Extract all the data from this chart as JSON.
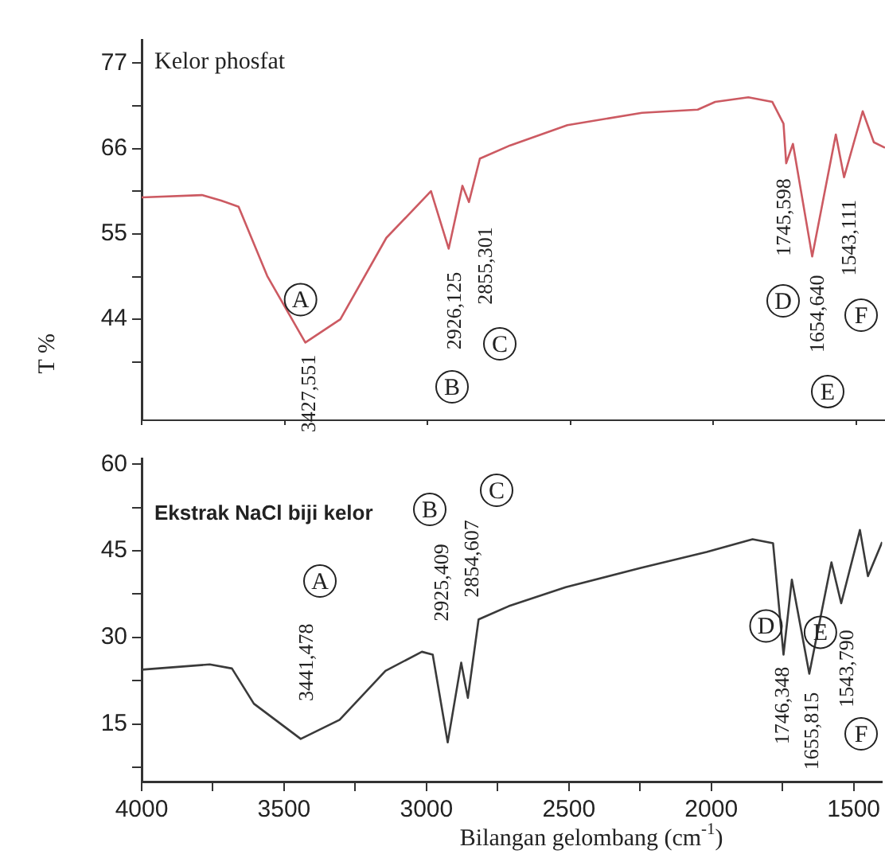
{
  "chart_data": [
    {
      "type": "line",
      "title": "Kelor phosfat",
      "ylabel": "T %",
      "tick_labels": "y",
      "grid": false,
      "legend": false,
      "marker": "none",
      "xlim": [
        4000,
        1400
      ],
      "ylim": [
        31,
        80
      ],
      "xticks": [
        {
          "value": 4000,
          "label": null
        },
        {
          "value": 3500,
          "label": null
        },
        {
          "value": 3000,
          "label": null
        },
        {
          "value": 2500,
          "label": null
        },
        {
          "value": 2000,
          "label": null
        },
        {
          "value": 1500,
          "label": null
        }
      ],
      "yticks": [
        {
          "value": 38.5,
          "label": null
        },
        44,
        {
          "value": 49.5,
          "label": null
        },
        55,
        {
          "value": 60.5,
          "label": null
        },
        66,
        {
          "value": 71.5,
          "label": null
        },
        77
      ],
      "series": [
        {
          "color": "#cc5a62",
          "x": [
            4000,
            3789,
            3722,
            3661,
            3561,
            3427.551,
            3305,
            3144,
            2988,
            2926.125,
            2878,
            2855.301,
            2817,
            2711,
            2511,
            2250,
            2055,
            1994,
            1878,
            1794,
            1755,
            1745.598,
            1722,
            1654.64,
            1572,
            1543.111,
            1478,
            1439,
            1400
          ],
          "values": [
            59.7,
            60.0,
            59.3,
            58.5,
            49.6,
            41,
            44.0,
            54.5,
            60.5,
            53.1,
            61.2,
            59.1,
            64.7,
            66.4,
            69.0,
            70.6,
            71.0,
            72.0,
            72.6,
            72.0,
            69.2,
            64.1,
            66.6,
            52.1,
            67.8,
            62.3,
            70.8,
            66.8,
            66.1
          ]
        }
      ],
      "annotations": [
        {
          "text": "3427,551",
          "x": 3427.551,
          "y": 41
        },
        {
          "text": "2926,125",
          "x": 2926.125,
          "y": 53.1
        },
        {
          "text": "2855,301",
          "x": 2855.301,
          "y": 59.1
        },
        {
          "text": "1745,598",
          "x": 1745.598,
          "y": 64.1
        },
        {
          "text": "1654,640",
          "x": 1654.64,
          "y": 52.1
        },
        {
          "text": "1543,111",
          "x": 1543.111,
          "y": 62.3
        },
        {
          "text": "A",
          "x": 3427.551,
          "y": 41
        },
        "B",
        "C",
        "D",
        "E",
        "F"
      ]
    },
    {
      "type": "line",
      "title": "Ekstrak NaCl biji kelor",
      "xlabel": "Bilangan gelombang (cm$^{-1}$)",
      "grid": false,
      "legend": false,
      "marker": "none",
      "xlim": [
        4000,
        1400
      ],
      "ylim": [
        5,
        61
      ],
      "xticks": [
        4000,
        {
          "value": 3750,
          "label": null
        },
        3500,
        {
          "value": 3250,
          "label": null
        },
        3000,
        {
          "value": 2750,
          "label": null
        },
        2500,
        {
          "value": 2250,
          "label": null
        },
        2000,
        {
          "value": 1750,
          "label": null
        },
        1500
      ],
      "yticks": [
        {
          "value": 7.5,
          "label": null
        },
        15,
        {
          "value": 22.5,
          "label": null
        },
        30,
        {
          "value": 37.5,
          "label": null
        },
        45,
        {
          "value": 52.5,
          "label": null
        },
        60
      ],
      "series": [
        {
          "color": "#3a3a3a",
          "x": [
            4000,
            3761,
            3683,
            3606,
            3441.478,
            3305,
            3144,
            3016,
            2978,
            2925.409,
            2878,
            2854.607,
            2817,
            2711,
            2511,
            2250,
            2016,
            1855,
            1783,
            1746.348,
            1717,
            1655.815,
            1578,
            1543.79,
            1478,
            1450,
            1400
          ],
          "values": [
            24.4,
            25.3,
            24.6,
            18.5,
            12.4,
            15.7,
            24.2,
            27.5,
            27.0,
            11.8,
            25.6,
            19.5,
            33.1,
            35.4,
            38.7,
            42.0,
            44.8,
            47.0,
            46.3,
            27.0,
            40.0,
            23.7,
            43.0,
            35.9,
            48.6,
            40.6,
            46.5
          ]
        }
      ],
      "annotations": [
        {
          "text": "3441,478",
          "x": 3441.478,
          "y": 12.4
        },
        "2925,409",
        "2854,607",
        {
          "text": "1746,348",
          "x": 1746.348,
          "y": 27.0
        },
        {
          "text": "1655,815",
          "x": 1655.815,
          "y": 23.7
        },
        {
          "text": "1543,790",
          "x": 1543.79,
          "y": 35.9
        },
        "A",
        "B",
        "C",
        {
          "text": "D",
          "x": 1746.348,
          "y": 27.0
        },
        {
          "text": "E",
          "x": 1655.815,
          "y": 23.7
        },
        "F"
      ]
    }
  ]
}
